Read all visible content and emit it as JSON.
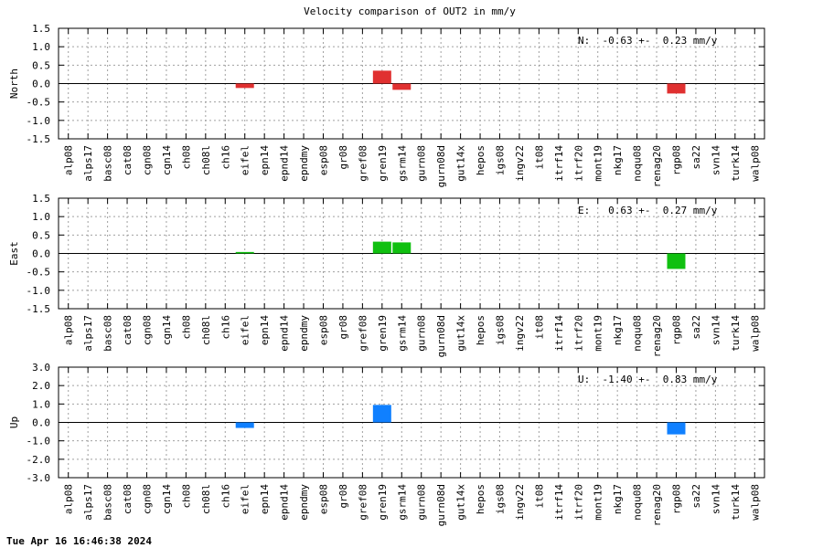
{
  "title": "Velocity comparison of OUT2 in mm/y",
  "footer_timestamp": "Tue Apr 16 16:46:38 2024",
  "chart_data": [
    {
      "type": "bar",
      "ylabel": "North",
      "ylim": [
        -1.5,
        1.5
      ],
      "yticks": [
        "1.5",
        "1.0",
        "0.5",
        "0.0",
        "-0.5",
        "-1.0",
        "-1.5"
      ],
      "annotation": "N:  -0.63 +-  0.23 mm/y",
      "color": "#e03030",
      "grid": true,
      "categories": [
        "alp08",
        "alps17",
        "basc08",
        "cat08",
        "cgn08",
        "cgn14",
        "ch08",
        "ch08l",
        "ch16",
        "eifel",
        "epn14",
        "epnd14",
        "epndmy",
        "esp08",
        "gr08",
        "gref08",
        "gren19",
        "gsrm14",
        "gurn08",
        "gurn08d",
        "gut14x",
        "hepos",
        "igs08",
        "ingv22",
        "it08",
        "itrf14",
        "itrf20",
        "mont19",
        "nkg17",
        "noqu08",
        "renag20",
        "rgp08",
        "sa22",
        "svn14",
        "turk14",
        "walp08"
      ],
      "values": [
        0,
        0,
        0,
        0,
        0,
        0,
        0,
        0,
        0,
        -0.12,
        0,
        0,
        0,
        0,
        0,
        0,
        0.35,
        -0.17,
        0,
        0,
        0,
        0,
        0,
        0,
        0,
        0,
        0,
        0,
        0,
        0,
        0,
        -0.27,
        0,
        0,
        0,
        0
      ]
    },
    {
      "type": "bar",
      "ylabel": "East",
      "ylim": [
        -1.5,
        1.5
      ],
      "yticks": [
        "1.5",
        "1.0",
        "0.5",
        "0.0",
        "-0.5",
        "-1.0",
        "-1.5"
      ],
      "annotation": "E:   0.63 +-  0.27 mm/y",
      "color": "#10c010",
      "grid": true,
      "categories": [
        "alp08",
        "alps17",
        "basc08",
        "cat08",
        "cgn08",
        "cgn14",
        "ch08",
        "ch08l",
        "ch16",
        "eifel",
        "epn14",
        "epnd14",
        "epndmy",
        "esp08",
        "gr08",
        "gref08",
        "gren19",
        "gsrm14",
        "gurn08",
        "gurn08d",
        "gut14x",
        "hepos",
        "igs08",
        "ingv22",
        "it08",
        "itrf14",
        "itrf20",
        "mont19",
        "nkg17",
        "noqu08",
        "renag20",
        "rgp08",
        "sa22",
        "svn14",
        "turk14",
        "walp08"
      ],
      "values": [
        0,
        0,
        0,
        0,
        0,
        0,
        0,
        0,
        0,
        0.04,
        0,
        0,
        0,
        0,
        0,
        0,
        0.32,
        0.3,
        0,
        0,
        0,
        0,
        0,
        0,
        0,
        0,
        0,
        0,
        0,
        0,
        0,
        -0.42,
        0,
        0,
        0,
        0
      ]
    },
    {
      "type": "bar",
      "ylabel": "Up",
      "ylim": [
        -3.0,
        3.0
      ],
      "yticks": [
        "3.0",
        "2.0",
        "1.0",
        "0.0",
        "-1.0",
        "-2.0",
        "-3.0"
      ],
      "annotation": "U:  -1.40 +-  0.83 mm/y",
      "color": "#1080ff",
      "grid": true,
      "categories": [
        "alp08",
        "alps17",
        "basc08",
        "cat08",
        "cgn08",
        "cgn14",
        "ch08",
        "ch08l",
        "ch16",
        "eifel",
        "epn14",
        "epnd14",
        "epndmy",
        "esp08",
        "gr08",
        "gref08",
        "gren19",
        "gsrm14",
        "gurn08",
        "gurn08d",
        "gut14x",
        "hepos",
        "igs08",
        "ingv22",
        "it08",
        "itrf14",
        "itrf20",
        "mont19",
        "nkg17",
        "noqu08",
        "renag20",
        "rgp08",
        "sa22",
        "svn14",
        "turk14",
        "walp08"
      ],
      "values": [
        0,
        0,
        0,
        0,
        0,
        0,
        0,
        0,
        0,
        -0.3,
        0,
        0,
        0,
        0,
        0,
        0,
        0.95,
        0,
        0,
        0,
        0,
        0,
        0,
        0,
        0,
        0,
        0,
        0,
        0,
        0,
        0,
        -0.65,
        0,
        0,
        0,
        0
      ]
    }
  ]
}
